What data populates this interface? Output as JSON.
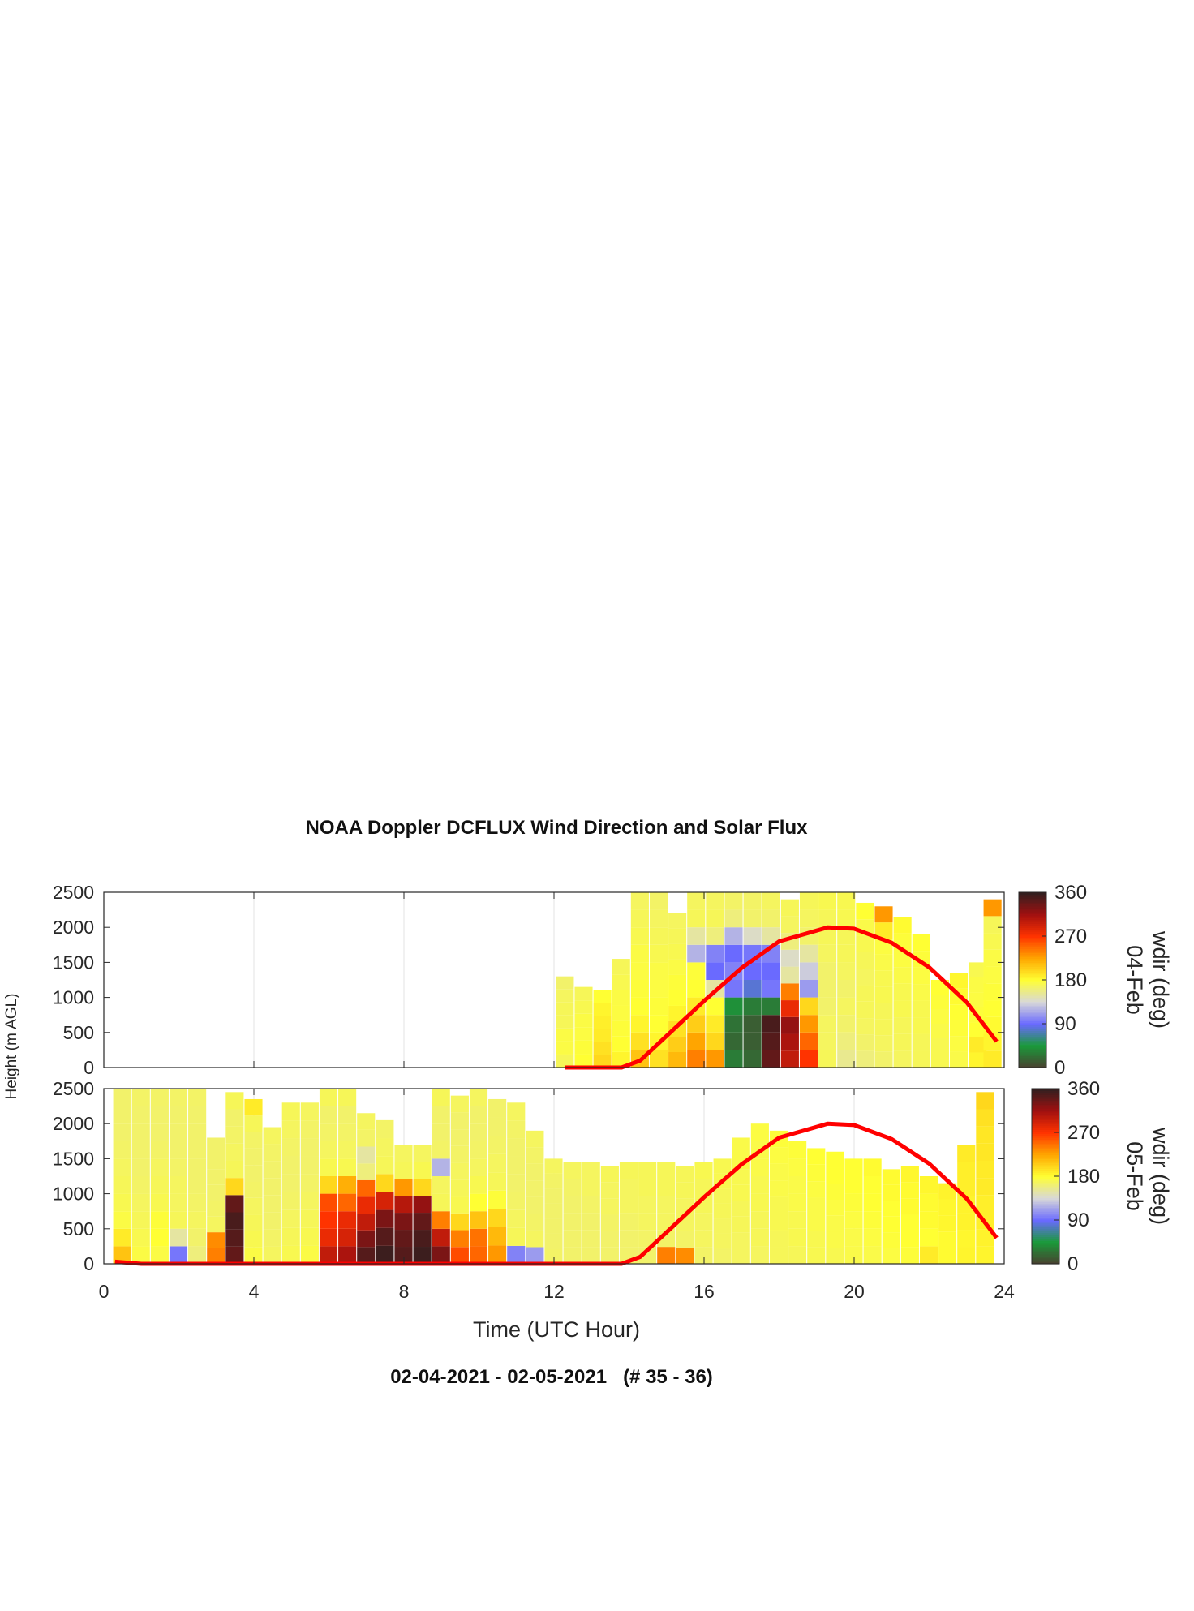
{
  "title": "NOAA Doppler DCFLUX Wind Direction and Solar Flux",
  "subtitle": "02-04-2021 - 02-05-2021   (# 35 - 36)",
  "xlabel": "Time (UTC Hour)",
  "ylabel": "Height (m AGL)",
  "colors": {
    "solar_line": "#ff0000",
    "colormap": [
      "#4a4030",
      "#1a9a3a",
      "#6a6aff",
      "#d8d8d8",
      "#ffff33",
      "#ffa500",
      "#ff3300",
      "#a01010",
      "#302020"
    ]
  },
  "chart_data": [
    {
      "type": "heatmap",
      "panel": "04-Feb",
      "date_label": "04-Feb",
      "colorbar_label": "wdir (deg)",
      "colorbar_ticks": [
        0,
        90,
        180,
        270,
        360
      ],
      "color_range": [
        0,
        360
      ],
      "xlim": [
        0,
        24
      ],
      "ylim": [
        0,
        2500
      ],
      "xticks": [
        0,
        4,
        8,
        12,
        16,
        20,
        24
      ],
      "yticks": [
        0,
        500,
        1000,
        1500,
        2000,
        2500
      ],
      "grid": true,
      "wind_direction_columns": [
        {
          "t": 12.3,
          "top": 1300,
          "dir": [
            170,
            175,
            175,
            170,
            170,
            168,
            165
          ]
        },
        {
          "t": 12.8,
          "top": 1150,
          "dir": [
            180,
            178,
            176,
            175,
            172,
            170
          ]
        },
        {
          "t": 13.3,
          "top": 1100,
          "dir": [
            200,
            195,
            190,
            188,
            185,
            180
          ]
        },
        {
          "t": 13.8,
          "top": 1550,
          "dir": [
            185,
            180,
            178,
            176,
            175,
            172,
            170
          ]
        },
        {
          "t": 14.3,
          "top": 2500,
          "dir": [
            210,
            195,
            185,
            180,
            178,
            176,
            175,
            172,
            170,
            168
          ]
        },
        {
          "t": 14.8,
          "top": 2500,
          "dir": [
            195,
            185,
            180,
            178,
            176,
            175,
            172,
            170,
            168,
            166
          ]
        },
        {
          "t": 15.3,
          "top": 2200,
          "dir": [
            215,
            205,
            195,
            185,
            180,
            178,
            175,
            172,
            170,
            168
          ]
        },
        {
          "t": 15.8,
          "top": 2500,
          "dir": [
            240,
            225,
            205,
            190,
            180,
            178,
            120,
            150,
            170,
            168
          ]
        },
        {
          "t": 16.3,
          "top": 2500,
          "dir": [
            230,
            200,
            190,
            180,
            150,
            90,
            100,
            160,
            170,
            168
          ]
        },
        {
          "t": 16.8,
          "top": 2500,
          "dir": [
            30,
            20,
            25,
            40,
            95,
            100,
            90,
            120,
            160,
            166
          ]
        },
        {
          "t": 17.3,
          "top": 2500,
          "dir": [
            20,
            15,
            15,
            30,
            80,
            90,
            95,
            140,
            165,
            166
          ]
        },
        {
          "t": 17.8,
          "top": 2500,
          "dir": [
            340,
            345,
            350,
            30,
            95,
            90,
            100,
            150,
            165,
            168
          ]
        },
        {
          "t": 18.3,
          "top": 2400,
          "dir": [
            300,
            310,
            320,
            280,
            240,
            150,
            140,
            160,
            168,
            170
          ]
        },
        {
          "t": 18.8,
          "top": 2500,
          "dir": [
            270,
            250,
            230,
            200,
            110,
            130,
            150,
            165,
            168,
            170
          ]
        },
        {
          "t": 19.3,
          "top": 2500,
          "dir": [
            170,
            168,
            168,
            165,
            165,
            165,
            168,
            170,
            170,
            172
          ]
        },
        {
          "t": 19.8,
          "top": 2500,
          "dir": [
            155,
            160,
            165,
            168,
            165,
            168,
            170,
            170,
            172,
            172
          ]
        },
        {
          "t": 20.3,
          "top": 2350,
          "dir": [
            160,
            165,
            168,
            170,
            170,
            168,
            170,
            172,
            174,
            180
          ]
        },
        {
          "t": 20.8,
          "top": 2300,
          "dir": [
            165,
            168,
            170,
            170,
            172,
            172,
            174,
            176,
            190,
            230
          ]
        },
        {
          "t": 21.3,
          "top": 2150,
          "dir": [
            168,
            170,
            170,
            172,
            172,
            174,
            176,
            178,
            182
          ]
        },
        {
          "t": 21.8,
          "top": 1900,
          "dir": [
            170,
            170,
            172,
            172,
            174,
            176,
            178,
            180
          ]
        },
        {
          "t": 22.3,
          "top": 1250,
          "dir": [
            172,
            172,
            174,
            176,
            178,
            180
          ]
        },
        {
          "t": 22.8,
          "top": 1350,
          "dir": [
            174,
            176,
            178,
            180,
            182,
            184
          ]
        },
        {
          "t": 23.3,
          "top": 1500,
          "dir": [
            185,
            190,
            180,
            178,
            176,
            175,
            172
          ]
        },
        {
          "t": 23.7,
          "top": 2400,
          "dir": [
            190,
            185,
            182,
            180,
            178,
            176,
            175,
            172,
            170,
            230
          ]
        }
      ],
      "solar_flux_curve": {
        "x": [
          12.3,
          13.8,
          14.3,
          15,
          16,
          17,
          18,
          19.3,
          20,
          21,
          22,
          23,
          23.8
        ],
        "y": [
          0,
          0,
          100,
          450,
          950,
          1420,
          1800,
          2000,
          1980,
          1780,
          1430,
          930,
          370
        ]
      }
    },
    {
      "type": "heatmap",
      "panel": "05-Feb",
      "date_label": "05-Feb",
      "colorbar_label": "wdir (deg)",
      "colorbar_ticks": [
        0,
        90,
        180,
        270,
        360
      ],
      "color_range": [
        0,
        360
      ],
      "xlim": [
        0,
        24
      ],
      "ylim": [
        0,
        2500
      ],
      "xticks": [
        0,
        4,
        8,
        12,
        16,
        20,
        24
      ],
      "yticks": [
        0,
        500,
        1000,
        1500,
        2000,
        2500
      ],
      "grid": true,
      "wind_direction_columns": [
        {
          "t": 0.5,
          "top": 2500,
          "dir": [
            210,
            190,
            175,
            172,
            170,
            168,
            166,
            165,
            165,
            165
          ]
        },
        {
          "t": 1.0,
          "top": 2500,
          "dir": [
            175,
            172,
            170,
            168,
            166,
            165,
            165,
            165,
            165,
            166
          ]
        },
        {
          "t": 1.5,
          "top": 2500,
          "dir": [
            175,
            180,
            178,
            172,
            170,
            168,
            166,
            165,
            165,
            166
          ]
        },
        {
          "t": 2.0,
          "top": 2500,
          "dir": [
            95,
            150,
            170,
            168,
            168,
            166,
            165,
            165,
            165,
            166
          ]
        },
        {
          "t": 2.5,
          "top": 2500,
          "dir": [
            160,
            165,
            168,
            166,
            165,
            165,
            165,
            165,
            165,
            166
          ]
        },
        {
          "t": 3.0,
          "top": 1800,
          "dir": [
            240,
            235,
            168,
            166,
            165,
            165,
            165,
            165
          ]
        },
        {
          "t": 3.5,
          "top": 2450,
          "dir": [
            340,
            345,
            350,
            340,
            200,
            170,
            168,
            166,
            165,
            170
          ]
        },
        {
          "t": 4.0,
          "top": 2350,
          "dir": [
            175,
            172,
            170,
            168,
            166,
            165,
            165,
            166,
            170,
            190
          ]
        },
        {
          "t": 4.5,
          "top": 1950,
          "dir": [
            168,
            166,
            165,
            165,
            165,
            165,
            166,
            168
          ]
        },
        {
          "t": 5.0,
          "top": 2300,
          "dir": [
            172,
            170,
            168,
            166,
            165,
            165,
            166,
            168,
            170
          ]
        },
        {
          "t": 5.5,
          "top": 2300,
          "dir": [
            175,
            172,
            170,
            168,
            166,
            165,
            165,
            166,
            168
          ]
        },
        {
          "t": 6.0,
          "top": 2500,
          "dir": [
            300,
            280,
            270,
            260,
            200,
            172,
            168,
            166,
            165,
            170
          ]
        },
        {
          "t": 6.5,
          "top": 2500,
          "dir": [
            310,
            290,
            280,
            250,
            220,
            172,
            168,
            166,
            165,
            170
          ]
        },
        {
          "t": 7.0,
          "top": 2150,
          "dir": [
            345,
            330,
            300,
            280,
            250,
            160,
            150,
            166,
            168
          ]
        },
        {
          "t": 7.5,
          "top": 2050,
          "dir": [
            355,
            345,
            330,
            290,
            200,
            170,
            168,
            166
          ]
        },
        {
          "t": 8.0,
          "top": 1700,
          "dir": [
            345,
            340,
            330,
            305,
            230,
            170,
            168
          ]
        },
        {
          "t": 8.5,
          "top": 1700,
          "dir": [
            355,
            350,
            340,
            320,
            200,
            172,
            168
          ]
        },
        {
          "t": 9.0,
          "top": 2500,
          "dir": [
            330,
            300,
            240,
            170,
            168,
            120,
            166,
            165,
            165,
            170
          ]
        },
        {
          "t": 9.5,
          "top": 2400,
          "dir": [
            260,
            240,
            200,
            172,
            170,
            168,
            166,
            165,
            165,
            168
          ]
        },
        {
          "t": 10.0,
          "top": 2500,
          "dir": [
            250,
            245,
            210,
            180,
            172,
            168,
            166,
            165,
            165,
            168
          ]
        },
        {
          "t": 10.5,
          "top": 2350,
          "dir": [
            230,
            215,
            200,
            178,
            170,
            168,
            166,
            165,
            165
          ]
        },
        {
          "t": 11.0,
          "top": 2300,
          "dir": [
            100,
            170,
            168,
            166,
            165,
            165,
            165,
            166,
            168
          ]
        },
        {
          "t": 11.5,
          "top": 1900,
          "dir": [
            110,
            168,
            166,
            165,
            165,
            165,
            166,
            168
          ]
        },
        {
          "t": 12.0,
          "top": 1500,
          "dir": [
            166,
            165,
            165,
            165,
            165,
            166,
            168
          ]
        },
        {
          "t": 12.5,
          "top": 1450,
          "dir": [
            165,
            165,
            165,
            165,
            166,
            168
          ]
        },
        {
          "t": 13.0,
          "top": 1450,
          "dir": [
            165,
            165,
            165,
            166,
            168,
            168
          ]
        },
        {
          "t": 13.5,
          "top": 1400,
          "dir": [
            165,
            165,
            166,
            168,
            168,
            170
          ]
        },
        {
          "t": 14.0,
          "top": 1450,
          "dir": [
            165,
            165,
            166,
            168,
            168,
            170
          ]
        },
        {
          "t": 14.5,
          "top": 1450,
          "dir": [
            165,
            166,
            168,
            168,
            170,
            170
          ]
        },
        {
          "t": 15.0,
          "top": 1450,
          "dir": [
            240,
            166,
            168,
            168,
            170,
            170
          ]
        },
        {
          "t": 15.5,
          "top": 1400,
          "dir": [
            235,
            166,
            168,
            168,
            170,
            170
          ]
        },
        {
          "t": 16.0,
          "top": 1450,
          "dir": [
            166,
            168,
            168,
            170,
            170,
            172
          ]
        },
        {
          "t": 16.5,
          "top": 1500,
          "dir": [
            166,
            168,
            168,
            170,
            170,
            172,
            172
          ]
        },
        {
          "t": 17.0,
          "top": 1800,
          "dir": [
            168,
            168,
            170,
            170,
            172,
            172,
            174,
            174
          ]
        },
        {
          "t": 17.5,
          "top": 2000,
          "dir": [
            168,
            170,
            170,
            172,
            172,
            174,
            174,
            176
          ]
        },
        {
          "t": 18.0,
          "top": 1900,
          "dir": [
            170,
            170,
            172,
            172,
            174,
            174,
            176,
            178
          ]
        },
        {
          "t": 18.5,
          "top": 1750,
          "dir": [
            170,
            172,
            172,
            174,
            174,
            176,
            178
          ]
        },
        {
          "t": 19.0,
          "top": 1650,
          "dir": [
            172,
            172,
            174,
            174,
            176,
            178,
            180
          ]
        },
        {
          "t": 19.5,
          "top": 1600,
          "dir": [
            172,
            174,
            174,
            176,
            178,
            180,
            180
          ]
        },
        {
          "t": 20.0,
          "top": 1500,
          "dir": [
            174,
            174,
            176,
            178,
            180,
            180
          ]
        },
        {
          "t": 20.5,
          "top": 1500,
          "dir": [
            174,
            176,
            178,
            180,
            180,
            182
          ]
        },
        {
          "t": 21.0,
          "top": 1350,
          "dir": [
            176,
            178,
            180,
            180,
            182,
            182
          ]
        },
        {
          "t": 21.5,
          "top": 1400,
          "dir": [
            178,
            180,
            180,
            182,
            182,
            184
          ]
        },
        {
          "t": 22.0,
          "top": 1250,
          "dir": [
            190,
            180,
            182,
            182,
            184
          ]
        },
        {
          "t": 22.5,
          "top": 1150,
          "dir": [
            182,
            182,
            184,
            184,
            186
          ]
        },
        {
          "t": 23.0,
          "top": 1700,
          "dir": [
            185,
            184,
            186,
            186,
            188,
            188,
            190
          ]
        },
        {
          "t": 23.5,
          "top": 2450,
          "dir": [
            185,
            186,
            188,
            188,
            190,
            190,
            192,
            192,
            195,
            200
          ]
        }
      ],
      "solar_flux_curve": {
        "x": [
          0.3,
          1,
          2,
          4,
          8,
          12,
          13.8,
          14.3,
          15,
          16,
          17,
          18,
          19.3,
          20,
          21,
          22,
          23,
          23.8
        ],
        "y": [
          30,
          0,
          0,
          0,
          0,
          0,
          0,
          100,
          450,
          950,
          1420,
          1800,
          2000,
          1980,
          1780,
          1430,
          930,
          370
        ]
      }
    }
  ]
}
